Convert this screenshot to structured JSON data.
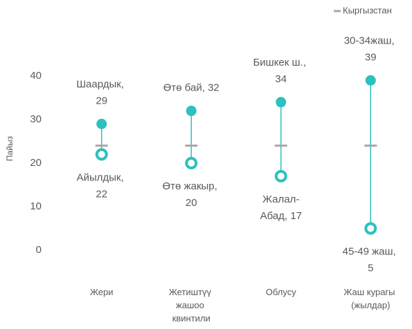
{
  "chart_data": {
    "type": "dumbbell",
    "categories": [
      "Жери",
      "Жетиштүү жашоо квинтили",
      "Облусу",
      "Жаш курагы (жылдар)"
    ],
    "series": [
      {
        "name": "Кыргызстан",
        "color": "#a6a6a6",
        "values": [
          24,
          24,
          24,
          24
        ]
      }
    ],
    "high_values": [
      29,
      32,
      34,
      39
    ],
    "high_labels": [
      "Шаардык, 29",
      "Өтө бай, 32",
      "Бишкек ш., 34",
      "30-34жаш, 39"
    ],
    "low_values": [
      22,
      20,
      17,
      5
    ],
    "low_labels": [
      "Айылдык, 22",
      "Өтө жакыр, 20",
      "Жалал-Абад, 17",
      "45-49 жаш, 5"
    ],
    "color": "#2ebfbf",
    "ylabel": "Пайыз",
    "ylim": [
      0,
      40
    ],
    "yticks": [
      0,
      10,
      20,
      30,
      40
    ],
    "legend": "top-right"
  }
}
